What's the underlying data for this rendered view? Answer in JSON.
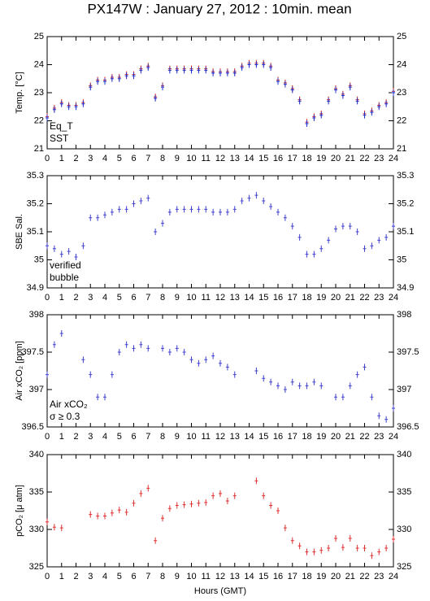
{
  "chart_data": [
    {
      "type": "scatter",
      "title": "PX147W : January 27, 2012 : 10min. mean",
      "y_label": "Temp. [°C]",
      "xlim": [
        0,
        24
      ],
      "xticks": [
        0,
        1,
        2,
        3,
        4,
        5,
        6,
        7,
        8,
        9,
        10,
        11,
        12,
        13,
        14,
        15,
        16,
        17,
        18,
        19,
        20,
        21,
        22,
        23,
        24
      ],
      "ylim": [
        21,
        25
      ],
      "yticks": [
        21,
        22,
        23,
        24,
        25
      ],
      "x": [
        0,
        0.5,
        1,
        1.5,
        2,
        2.5,
        3,
        3.5,
        4,
        4.5,
        5,
        5.5,
        6,
        6.5,
        7,
        7.5,
        8,
        8.5,
        9,
        9.5,
        10,
        10.5,
        11,
        11.5,
        12,
        12.5,
        13,
        13.5,
        14,
        14.5,
        15,
        15.5,
        16,
        16.5,
        17,
        17.5,
        18,
        18.5,
        19,
        19.5,
        20,
        20.5,
        21,
        21.5,
        22,
        22.5,
        23,
        23.5,
        24
      ],
      "series": [
        {
          "name": "Eq_T",
          "color": "#d02020",
          "values": [
            22.15,
            22.45,
            22.65,
            22.55,
            22.55,
            22.65,
            23.25,
            23.45,
            23.45,
            23.55,
            23.55,
            23.65,
            23.65,
            23.85,
            23.95,
            22.85,
            23.25,
            23.85,
            23.85,
            23.85,
            23.85,
            23.85,
            23.85,
            23.75,
            23.75,
            23.75,
            23.75,
            23.95,
            24.05,
            24.05,
            24.05,
            23.95,
            23.45,
            23.35,
            23.15,
            22.75,
            21.95,
            22.15,
            22.25,
            22.75,
            23.15,
            22.95,
            23.25,
            22.75,
            22.25,
            22.35,
            22.55,
            22.65,
            23.05
          ]
        },
        {
          "name": "SST",
          "color": "#2030d0",
          "values": [
            22.1,
            22.4,
            22.6,
            22.5,
            22.5,
            22.6,
            23.2,
            23.4,
            23.4,
            23.5,
            23.5,
            23.6,
            23.6,
            23.8,
            23.9,
            22.8,
            23.2,
            23.8,
            23.8,
            23.8,
            23.8,
            23.8,
            23.8,
            23.7,
            23.7,
            23.7,
            23.7,
            23.9,
            24.0,
            24.0,
            24.0,
            23.9,
            23.4,
            23.3,
            23.1,
            22.7,
            21.9,
            22.1,
            22.2,
            22.7,
            23.1,
            22.9,
            23.2,
            22.7,
            22.2,
            22.3,
            22.5,
            22.6,
            23.0
          ]
        }
      ]
    },
    {
      "type": "scatter",
      "y_label": "SBE Sal.",
      "xlim": [
        0,
        24
      ],
      "xticks": [
        0,
        1,
        2,
        3,
        4,
        5,
        6,
        7,
        8,
        9,
        10,
        11,
        12,
        13,
        14,
        15,
        16,
        17,
        18,
        19,
        20,
        21,
        22,
        23,
        24
      ],
      "ylim": [
        34.9,
        35.3
      ],
      "yticks": [
        34.9,
        35,
        35.1,
        35.2,
        35.3
      ],
      "x": [
        0,
        0.5,
        1,
        1.5,
        2,
        2.5,
        3,
        3.5,
        4,
        4.5,
        5,
        5.5,
        6,
        6.5,
        7,
        7.5,
        8,
        8.5,
        9,
        9.5,
        10,
        10.5,
        11,
        11.5,
        12,
        12.5,
        13,
        13.5,
        14,
        14.5,
        15,
        15.5,
        16,
        16.5,
        17,
        17.5,
        18,
        18.5,
        19,
        19.5,
        20,
        20.5,
        21,
        21.5,
        22,
        22.5,
        23,
        23.5,
        24
      ],
      "series": [
        {
          "name": "verified",
          "color": "#4040d0",
          "values": [
            35.05,
            35.04,
            35.02,
            35.03,
            35.01,
            35.05,
            35.15,
            35.15,
            35.16,
            35.17,
            35.18,
            35.18,
            35.2,
            35.21,
            35.22,
            35.1,
            35.13,
            35.17,
            35.18,
            35.18,
            35.18,
            35.18,
            35.18,
            35.17,
            35.17,
            35.17,
            35.18,
            35.21,
            35.22,
            35.23,
            35.21,
            35.19,
            35.17,
            35.15,
            35.12,
            35.08,
            35.02,
            35.02,
            35.04,
            35.07,
            35.11,
            35.12,
            35.12,
            35.1,
            35.04,
            35.05,
            35.07,
            35.08,
            35.12
          ]
        }
      ],
      "annotations": [
        {
          "text": "bubble",
          "color": "#d020d0"
        }
      ]
    },
    {
      "type": "scatter",
      "y_label": "Air xCO₂ [ppm]",
      "xlim": [
        0,
        24
      ],
      "xticks": [
        0,
        1,
        2,
        3,
        4,
        5,
        6,
        7,
        8,
        9,
        10,
        11,
        12,
        13,
        14,
        15,
        16,
        17,
        18,
        19,
        20,
        21,
        22,
        23,
        24
      ],
      "ylim": [
        396.5,
        398
      ],
      "yticks": [
        396.5,
        397,
        397.5,
        398
      ],
      "x": [
        0,
        0.5,
        1,
        1.5,
        2,
        2.5,
        3,
        3.5,
        4,
        4.5,
        5,
        5.5,
        6,
        6.5,
        7,
        7.5,
        8,
        8.5,
        9,
        9.5,
        10,
        10.5,
        11,
        11.5,
        12,
        12.5,
        13,
        13.5,
        14,
        14.5,
        15,
        15.5,
        16,
        16.5,
        17,
        17.5,
        18,
        18.5,
        19,
        19.5,
        20,
        20.5,
        21,
        21.5,
        22,
        22.5,
        23,
        23.5,
        24
      ],
      "series": [
        {
          "name": "Air xCO₂",
          "color": "#4040d0",
          "values": [
            397.2,
            397.6,
            397.75,
            null,
            null,
            397.4,
            397.2,
            396.9,
            396.9,
            397.2,
            397.5,
            397.6,
            397.55,
            397.6,
            397.55,
            null,
            397.55,
            397.5,
            397.55,
            397.5,
            397.4,
            397.35,
            397.4,
            397.45,
            397.35,
            397.3,
            397.2,
            null,
            null,
            397.25,
            397.15,
            397.1,
            397.05,
            397.0,
            397.1,
            397.05,
            397.05,
            397.1,
            397.05,
            null,
            396.9,
            396.9,
            397.05,
            397.2,
            397.3,
            396.9,
            396.65,
            396.6,
            396.75
          ]
        }
      ],
      "annotations": [
        {
          "text": "σ ≥ 0.3",
          "color": "#d020d0"
        }
      ]
    },
    {
      "type": "scatter",
      "y_label": "pCO₂ [μ atm]",
      "x_label": "Hours (GMT)",
      "xlim": [
        0,
        24
      ],
      "xticks": [
        0,
        1,
        2,
        3,
        4,
        5,
        6,
        7,
        8,
        9,
        10,
        11,
        12,
        13,
        14,
        15,
        16,
        17,
        18,
        19,
        20,
        21,
        22,
        23,
        24
      ],
      "ylim": [
        325,
        340
      ],
      "yticks": [
        325,
        330,
        335,
        340
      ],
      "x": [
        0,
        0.5,
        1,
        1.5,
        2,
        2.5,
        3,
        3.5,
        4,
        4.5,
        5,
        5.5,
        6,
        6.5,
        7,
        7.5,
        8,
        8.5,
        9,
        9.5,
        10,
        10.5,
        11,
        11.5,
        12,
        12.5,
        13,
        13.5,
        14,
        14.5,
        15,
        15.5,
        16,
        16.5,
        17,
        17.5,
        18,
        18.5,
        19,
        19.5,
        20,
        20.5,
        21,
        21.5,
        22,
        22.5,
        23,
        23.5,
        24
      ],
      "series": [
        {
          "name": "pCO₂",
          "color": "#e03030",
          "values": [
            331,
            330.3,
            330.2,
            null,
            null,
            null,
            332,
            331.8,
            331.8,
            332.2,
            332.6,
            332.3,
            333.5,
            334.8,
            335.5,
            328.5,
            331.5,
            332.8,
            333.2,
            333.3,
            333.4,
            333.5,
            333.6,
            334.5,
            334.8,
            333.8,
            334.5,
            null,
            null,
            336.5,
            334.5,
            333.2,
            332.5,
            330.2,
            328.5,
            327.8,
            327,
            327,
            327.2,
            327.5,
            328.8,
            327.6,
            328.8,
            327.5,
            327.5,
            326.5,
            327,
            327.5,
            328.7
          ]
        }
      ]
    }
  ]
}
